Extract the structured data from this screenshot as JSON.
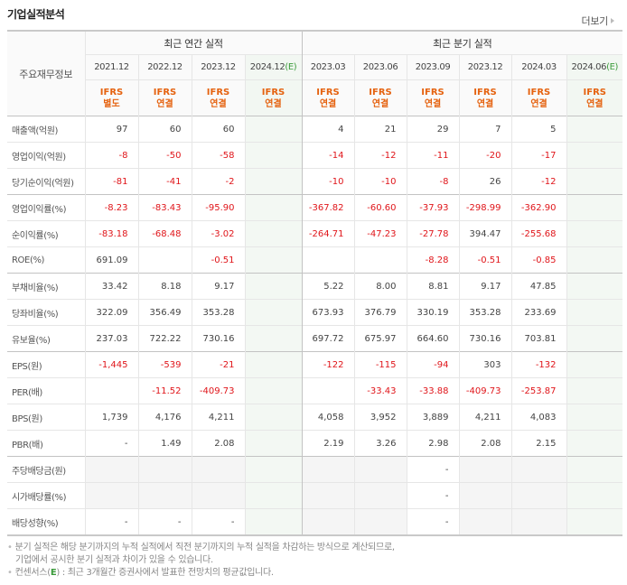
{
  "header": {
    "title": "기업실적분석",
    "more_label": "더보기"
  },
  "table": {
    "corner_label": "주요재무정보",
    "groups": {
      "annual": "최근 연간 실적",
      "quarterly": "최근 분기 실적"
    },
    "periods": [
      {
        "label": "2021.12",
        "estimate": false,
        "basis1": "IFRS",
        "basis2": "별도"
      },
      {
        "label": "2022.12",
        "estimate": false,
        "basis1": "IFRS",
        "basis2": "연결"
      },
      {
        "label": "2023.12",
        "estimate": false,
        "basis1": "IFRS",
        "basis2": "연결"
      },
      {
        "label": "2024.12",
        "estimate": true,
        "est_mark": "(E)",
        "basis1": "IFRS",
        "basis2": "연결"
      },
      {
        "label": "2023.03",
        "estimate": false,
        "basis1": "IFRS",
        "basis2": "연결"
      },
      {
        "label": "2023.06",
        "estimate": false,
        "basis1": "IFRS",
        "basis2": "연결"
      },
      {
        "label": "2023.09",
        "estimate": false,
        "basis1": "IFRS",
        "basis2": "연결"
      },
      {
        "label": "2023.12",
        "estimate": false,
        "basis1": "IFRS",
        "basis2": "연결"
      },
      {
        "label": "2024.03",
        "estimate": false,
        "basis1": "IFRS",
        "basis2": "연결"
      },
      {
        "label": "2024.06",
        "estimate": true,
        "est_mark": "(E)",
        "basis1": "IFRS",
        "basis2": "연결"
      }
    ],
    "rows": [
      {
        "label": "매출액(억원)",
        "values": [
          "97",
          "60",
          "60",
          "",
          "4",
          "21",
          "29",
          "7",
          "5",
          ""
        ]
      },
      {
        "label": "영업이익(억원)",
        "values": [
          "-8",
          "-50",
          "-58",
          "",
          "-14",
          "-12",
          "-11",
          "-20",
          "-17",
          ""
        ]
      },
      {
        "label": "당기순이익(억원)",
        "values": [
          "-81",
          "-41",
          "-2",
          "",
          "-10",
          "-10",
          "-8",
          "26",
          "-12",
          ""
        ]
      },
      {
        "label": "영업이익률(%)",
        "values": [
          "-8.23",
          "-83.43",
          "-95.90",
          "",
          "-367.82",
          "-60.60",
          "-37.93",
          "-298.99",
          "-362.90",
          ""
        ]
      },
      {
        "label": "순이익률(%)",
        "values": [
          "-83.18",
          "-68.48",
          "-3.02",
          "",
          "-264.71",
          "-47.23",
          "-27.78",
          "394.47",
          "-255.68",
          ""
        ]
      },
      {
        "label": "ROE(%)",
        "values": [
          "691.09",
          "",
          "-0.51",
          "",
          "",
          "",
          "-8.28",
          "-0.51",
          "-0.85",
          ""
        ]
      },
      {
        "label": "부채비율(%)",
        "values": [
          "33.42",
          "8.18",
          "9.17",
          "",
          "5.22",
          "8.00",
          "8.81",
          "9.17",
          "47.85",
          ""
        ]
      },
      {
        "label": "당좌비율(%)",
        "values": [
          "322.09",
          "356.49",
          "353.28",
          "",
          "673.93",
          "376.79",
          "330.19",
          "353.28",
          "233.69",
          ""
        ]
      },
      {
        "label": "유보율(%)",
        "values": [
          "237.03",
          "722.22",
          "730.16",
          "",
          "697.72",
          "675.97",
          "664.60",
          "730.16",
          "703.81",
          ""
        ]
      },
      {
        "label": "EPS(원)",
        "values": [
          "-1,445",
          "-539",
          "-21",
          "",
          "-122",
          "-115",
          "-94",
          "303",
          "-132",
          ""
        ]
      },
      {
        "label": "PER(배)",
        "values": [
          "",
          "-11.52",
          "-409.73",
          "",
          "",
          "-33.43",
          "-33.88",
          "-409.73",
          "-253.87",
          ""
        ]
      },
      {
        "label": "BPS(원)",
        "values": [
          "1,739",
          "4,176",
          "4,211",
          "",
          "4,058",
          "3,952",
          "3,889",
          "4,211",
          "4,083",
          ""
        ]
      },
      {
        "label": "PBR(배)",
        "values": [
          "-",
          "1.49",
          "2.08",
          "",
          "2.19",
          "3.26",
          "2.98",
          "2.08",
          "2.15",
          ""
        ]
      },
      {
        "label": "주당배당금(원)",
        "values": [
          "",
          "",
          "",
          "",
          "",
          "",
          "-",
          "",
          "",
          ""
        ]
      },
      {
        "label": "시가배당률(%)",
        "values": [
          "",
          "",
          "",
          "",
          "",
          "",
          "-",
          "",
          "",
          ""
        ]
      },
      {
        "label": "배당성향(%)",
        "values": [
          "-",
          "-",
          "-",
          "",
          "",
          "",
          "-",
          "",
          "",
          ""
        ]
      }
    ]
  },
  "notes": {
    "line1": "분기 실적은 해당 분기까지의 누적 실적에서 직전 분기까지의 누적 실적을 차감하는 방식으로 계산되므로,",
    "line2": "기업에서 공시한 분기 실적과 차이가 있을 수 있습니다.",
    "line3_prefix": "컨센서스(",
    "line3_mark": "E",
    "line3_suffix": ") : 최근 3개월간 증권사에서 발표한 전망치의 평균값입니다."
  },
  "colors": {
    "negative": "#e0151a",
    "ifrs_orange": "#e5620f",
    "estimate_green": "#3c9c3c",
    "estimate_bg": "#f3f8f3"
  }
}
